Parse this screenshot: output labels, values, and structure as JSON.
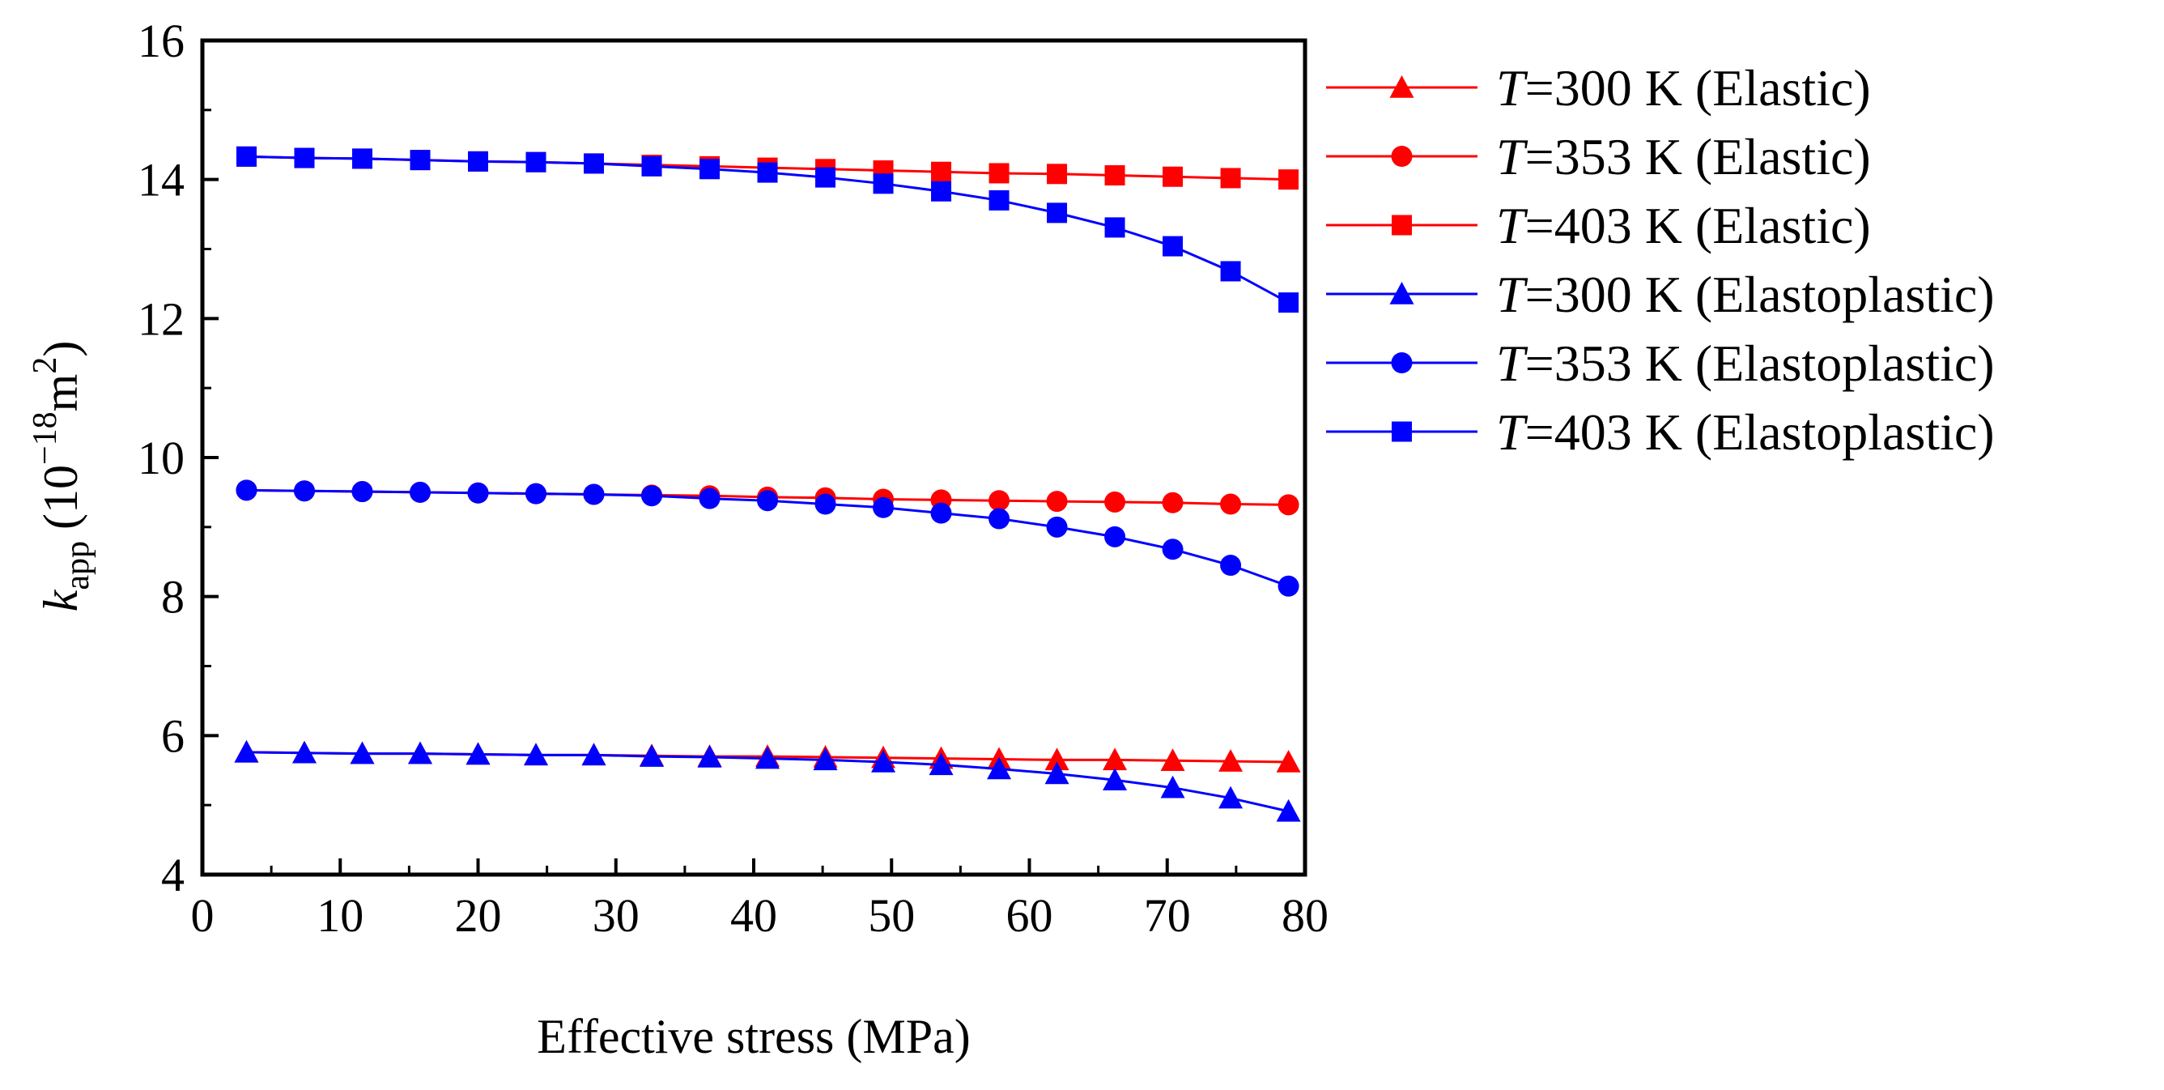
{
  "chart_data": {
    "type": "line",
    "xlabel": "Effective stress (MPa)",
    "ylabel": {
      "k": "k",
      "sub": "app",
      "unit_prefix": "(10",
      "exponent1": "−18",
      "unit_mid": "m",
      "exponent2": "2",
      "unit_suffix": ")"
    },
    "xlim": [
      0,
      80
    ],
    "ylim": [
      4,
      16
    ],
    "xticks": [
      "0",
      "10",
      "20",
      "30",
      "40",
      "50",
      "60",
      "70",
      "80"
    ],
    "yticks": [
      "4",
      "6",
      "8",
      "10",
      "12",
      "14",
      "16"
    ],
    "grid": false,
    "legend_position": "right",
    "x": [
      3.2,
      7.4,
      11.6,
      15.8,
      20.0,
      24.2,
      28.4,
      32.6,
      36.8,
      41.0,
      45.2,
      49.4,
      53.6,
      57.8,
      62.0,
      66.2,
      70.4,
      74.6,
      78.8
    ],
    "series": [
      {
        "name": {
          "var": "T",
          "rest": "=300 K (Elastic)"
        },
        "color": "#ff0000",
        "marker": "triangle",
        "values": [
          5.76,
          5.75,
          5.74,
          5.74,
          5.73,
          5.72,
          5.72,
          5.71,
          5.7,
          5.7,
          5.69,
          5.68,
          5.67,
          5.66,
          5.65,
          5.65,
          5.64,
          5.63,
          5.62
        ]
      },
      {
        "name": {
          "var": "T",
          "rest": "=353 K (Elastic)"
        },
        "color": "#ff0000",
        "marker": "circle",
        "values": [
          9.53,
          9.52,
          9.51,
          9.5,
          9.49,
          9.48,
          9.47,
          9.46,
          9.45,
          9.43,
          9.42,
          9.4,
          9.39,
          9.38,
          9.37,
          9.36,
          9.35,
          9.33,
          9.32
        ]
      },
      {
        "name": {
          "var": "T",
          "rest": "=403 K (Elastic)"
        },
        "color": "#ff0000",
        "marker": "square",
        "values": [
          14.33,
          14.31,
          14.3,
          14.28,
          14.26,
          14.25,
          14.23,
          14.21,
          14.19,
          14.17,
          14.15,
          14.13,
          14.11,
          14.09,
          14.08,
          14.06,
          14.04,
          14.02,
          14.0
        ]
      },
      {
        "name": {
          "var": "T",
          "rest": "=300 K (Elastoplastic)"
        },
        "color": "#0000ff",
        "marker": "triangle",
        "values": [
          5.76,
          5.75,
          5.74,
          5.74,
          5.73,
          5.72,
          5.72,
          5.7,
          5.69,
          5.67,
          5.65,
          5.62,
          5.58,
          5.52,
          5.45,
          5.36,
          5.25,
          5.1,
          4.91
        ]
      },
      {
        "name": {
          "var": "T",
          "rest": "=353 K (Elastoplastic)"
        },
        "color": "#0000ff",
        "marker": "circle",
        "values": [
          9.53,
          9.52,
          9.51,
          9.5,
          9.49,
          9.48,
          9.47,
          9.45,
          9.41,
          9.38,
          9.33,
          9.28,
          9.2,
          9.12,
          9.0,
          8.86,
          8.68,
          8.45,
          8.15
        ]
      },
      {
        "name": {
          "var": "T",
          "rest": "=403 K (Elastoplastic)"
        },
        "color": "#0000ff",
        "marker": "square",
        "values": [
          14.33,
          14.31,
          14.3,
          14.28,
          14.26,
          14.25,
          14.23,
          14.19,
          14.15,
          14.1,
          14.03,
          13.94,
          13.83,
          13.7,
          13.52,
          13.31,
          13.04,
          12.68,
          12.23
        ]
      }
    ]
  }
}
